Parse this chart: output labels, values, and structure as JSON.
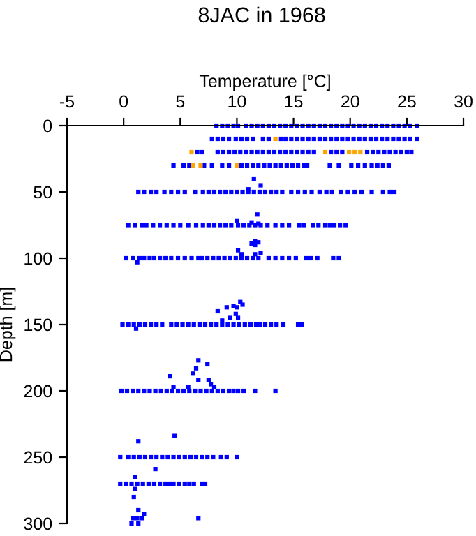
{
  "chart_data": {
    "type": "scatter",
    "title": "8JAC in 1968",
    "xlabel": "Temperature [°C]",
    "ylabel": "Depth [m]",
    "xlim": [
      -5,
      30
    ],
    "ylim": [
      300,
      0
    ],
    "xticks": [
      -5,
      0,
      5,
      10,
      15,
      20,
      25,
      30
    ],
    "yticks": [
      0,
      50,
      100,
      150,
      200,
      250,
      300
    ],
    "grid": false,
    "marker": "square",
    "series": [
      {
        "color": "#0000ff",
        "x": [
          8.2,
          8.7,
          9.2,
          9.7,
          10.1,
          10.8,
          11.3,
          11.8,
          12.3,
          12.8,
          13.3,
          13.8,
          14.3,
          14.8,
          15.3,
          15.8,
          16.3,
          16.8,
          17.3,
          17.8,
          18.3,
          18.8,
          19.3,
          19.8,
          20.3,
          20.8,
          21.3,
          21.8,
          22.3,
          22.8,
          23.3,
          23.8,
          24.3,
          24.8,
          25.3,
          25.9
        ],
        "values": [
          0,
          0,
          0,
          0,
          0,
          0,
          0,
          0,
          0,
          0,
          0,
          0,
          0,
          0,
          0,
          0,
          0,
          0,
          0,
          0,
          0,
          0,
          0,
          0,
          0,
          0,
          0,
          0,
          0,
          0,
          0,
          0,
          0,
          0,
          0,
          0
        ]
      },
      {
        "color": "#0000ff",
        "x": [
          7.8,
          8.3,
          8.8,
          9.3,
          9.9,
          10.4,
          10.9,
          11.4,
          12.3,
          12.8,
          13.9,
          14.3,
          14.8,
          15.3,
          15.8,
          16.3,
          16.8,
          17.3,
          17.8,
          18.3,
          18.8,
          19.3,
          19.8,
          20.3,
          20.8,
          21.3,
          21.8,
          22.3,
          22.8,
          23.3,
          23.8,
          24.3,
          24.8,
          25.3,
          25.9
        ],
        "values": [
          10,
          10,
          10,
          10,
          10,
          10,
          10,
          10,
          10,
          10,
          10,
          10,
          10,
          10,
          10,
          10,
          10,
          10,
          10,
          10,
          10,
          10,
          10,
          10,
          10,
          10,
          10,
          10,
          10,
          10,
          10,
          10,
          10,
          10,
          10
        ]
      },
      {
        "color": "#0000ff",
        "x": [
          6.5,
          6.9,
          8.3,
          8.8,
          9.3,
          9.8,
          10.3,
          10.8,
          11.3,
          11.8,
          12.3,
          12.8,
          13.3,
          13.8,
          14.3,
          14.8,
          15.3,
          15.8,
          16.3,
          16.8,
          18.3,
          18.8,
          19.3,
          21.5,
          22.0,
          22.5,
          23.0,
          23.5,
          24.0,
          24.5,
          25.0,
          25.4
        ],
        "values": [
          20,
          20,
          20,
          20,
          20,
          20,
          20,
          20,
          20,
          20,
          20,
          20,
          20,
          20,
          20,
          20,
          20,
          20,
          20,
          20,
          20,
          20,
          20,
          20,
          20,
          20,
          20,
          20,
          20,
          20,
          20,
          20
        ]
      },
      {
        "color": "#0000ff",
        "x": [
          4.4,
          5.3,
          5.8,
          7.1,
          7.8,
          8.7,
          9.3,
          10.4,
          10.9,
          11.4,
          11.9,
          12.4,
          12.9,
          13.4,
          13.9,
          14.4,
          14.9,
          15.4,
          15.9,
          16.2,
          18.2,
          19.0,
          20.1,
          20.7,
          21.3,
          21.9,
          22.4,
          22.9,
          23.4
        ],
        "values": [
          30,
          30,
          30,
          30,
          30,
          30,
          30,
          30,
          30,
          30,
          30,
          30,
          30,
          30,
          30,
          30,
          30,
          30,
          30,
          30,
          30,
          30,
          30,
          30,
          30,
          30,
          30,
          30,
          30
        ]
      },
      {
        "color": "#0000ff",
        "x": [
          1.3,
          1.8,
          2.4,
          2.9,
          3.6,
          4.2,
          4.8,
          5.4,
          6.3,
          7.0,
          7.5,
          8.0,
          8.5,
          9.0,
          9.5,
          10.0,
          10.5,
          11.0,
          11.5,
          12.0,
          12.5,
          13.0,
          13.5,
          14.0,
          14.8,
          15.4,
          16.0,
          16.6,
          17.3,
          17.9,
          18.4,
          19.2,
          19.8,
          20.4,
          21.0,
          21.9,
          22.9,
          23.5,
          23.9
        ],
        "values": [
          50,
          50,
          50,
          50,
          50,
          50,
          50,
          50,
          50,
          50,
          50,
          50,
          50,
          50,
          50,
          50,
          50,
          50,
          50,
          50,
          50,
          50,
          50,
          50,
          50,
          50,
          50,
          50,
          50,
          50,
          50,
          50,
          50,
          50,
          50,
          50,
          50,
          50,
          50
        ]
      },
      {
        "color": "#0000ff",
        "x": [
          0.4,
          1.0,
          1.6,
          2.0,
          2.6,
          3.2,
          3.8,
          4.4,
          5.0,
          5.7,
          6.4,
          7.0,
          7.5,
          8.0,
          8.5,
          9.0,
          9.5,
          10.1,
          10.6,
          11.1,
          11.6,
          12.1,
          12.7,
          13.4,
          14.0,
          14.6,
          15.5,
          15.9,
          16.7,
          17.2,
          17.8,
          18.2,
          18.6,
          19.1,
          19.6
        ],
        "values": [
          75,
          75,
          75,
          75,
          75,
          75,
          75,
          75,
          75,
          75,
          75,
          75,
          75,
          75,
          75,
          75,
          75,
          75,
          75,
          75,
          75,
          75,
          75,
          75,
          75,
          75,
          75,
          75,
          75,
          75,
          75,
          75,
          75,
          75,
          75
        ]
      },
      {
        "color": "#0000ff",
        "x": [
          0.2,
          0.8,
          1.4,
          1.8,
          2.3,
          2.7,
          3.2,
          3.7,
          4.2,
          4.8,
          5.4,
          6.0,
          6.6,
          6.9,
          7.4,
          7.9,
          8.4,
          8.9,
          9.4,
          9.9,
          10.4,
          10.9,
          11.4,
          11.9,
          12.8,
          13.4,
          14.0,
          14.6,
          15.2,
          16.1,
          16.5,
          17.1,
          18.5,
          19.0
        ],
        "values": [
          100,
          100,
          100,
          100,
          100,
          100,
          100,
          100,
          100,
          100,
          100,
          100,
          100,
          100,
          100,
          100,
          100,
          100,
          100,
          100,
          100,
          100,
          100,
          100,
          100,
          100,
          100,
          100,
          100,
          100,
          100,
          100,
          100,
          100
        ]
      },
      {
        "color": "#0000ff",
        "x": [
          -0.1,
          0.4,
          0.9,
          1.4,
          1.9,
          2.4,
          2.9,
          3.4,
          4.2,
          4.7,
          5.2,
          5.7,
          6.2,
          6.7,
          7.2,
          7.7,
          8.2,
          8.7,
          9.2,
          9.7,
          10.2,
          10.7,
          11.2,
          11.7,
          12.0,
          12.5,
          13.0,
          13.5,
          14.1,
          15.4,
          15.7
        ],
        "values": [
          150,
          150,
          150,
          150,
          150,
          150,
          150,
          150,
          150,
          150,
          150,
          150,
          150,
          150,
          150,
          150,
          150,
          150,
          150,
          150,
          150,
          150,
          150,
          150,
          150,
          150,
          150,
          150,
          150,
          150,
          150
        ]
      },
      {
        "color": "#0000ff",
        "x": [
          -0.2,
          0.3,
          0.8,
          1.3,
          1.8,
          2.3,
          2.8,
          3.3,
          3.8,
          4.3,
          4.8,
          5.3,
          5.8,
          6.3,
          6.8,
          7.3,
          7.8,
          8.3,
          8.8,
          9.3,
          9.7,
          10.1,
          10.6,
          11.6,
          13.4
        ],
        "values": [
          200,
          200,
          200,
          200,
          200,
          200,
          200,
          200,
          200,
          200,
          200,
          200,
          200,
          200,
          200,
          200,
          200,
          200,
          200,
          200,
          200,
          200,
          200,
          200,
          200
        ]
      },
      {
        "color": "#0000ff",
        "x": [
          -0.3,
          0.4,
          0.9,
          1.4,
          1.9,
          2.4,
          2.9,
          3.4,
          3.9,
          4.4,
          4.9,
          5.4,
          5.9,
          6.4,
          6.9,
          7.4,
          7.9,
          8.6,
          9.1,
          10.0
        ],
        "values": [
          250,
          250,
          250,
          250,
          250,
          250,
          250,
          250,
          250,
          250,
          250,
          250,
          250,
          250,
          250,
          250,
          250,
          250,
          250,
          250
        ]
      },
      {
        "color": "#0000ff",
        "x": [
          -0.3,
          0.2,
          0.7,
          1.2,
          1.7,
          2.2,
          2.7,
          3.2,
          3.7,
          4.1,
          4.4,
          4.9,
          5.4,
          5.8,
          6.2,
          6.9,
          7.2
        ],
        "values": [
          270,
          270,
          270,
          270,
          270,
          270,
          270,
          270,
          270,
          270,
          270,
          270,
          270,
          270,
          270,
          270,
          270
        ]
      },
      {
        "color": "#0000ff",
        "x": [
          11.5,
          12.1,
          11.0,
          11.8,
          10.0,
          11.3,
          11.9,
          11.6,
          11.9,
          11.3,
          11.6,
          10.1,
          10.4,
          12.1,
          11.6,
          1.2,
          10.3,
          10.5,
          9.7,
          10.0,
          9.1,
          8.3,
          9.9,
          9.4,
          10.1,
          8.7,
          1.1,
          6.6,
          7.4,
          6.4,
          4.1,
          6.1,
          6.6,
          7.5,
          7.7,
          8.0,
          4.4,
          5.7,
          1.3,
          4.5,
          2.8,
          1.0,
          1.0,
          0.9,
          1.3,
          1.8,
          0.8,
          1.2,
          1.6,
          0.7,
          1.3,
          6.6
        ],
        "values": [
          40,
          45,
          48,
          67,
          72,
          73,
          74,
          87,
          88,
          89,
          90,
          94,
          97,
          96,
          97,
          103,
          133,
          135,
          136,
          137,
          137,
          140,
          142,
          145,
          145,
          147,
          153,
          177,
          180,
          183,
          189,
          187,
          192,
          192,
          195,
          197,
          197,
          197,
          238,
          234,
          259,
          265,
          274,
          280,
          290,
          293,
          296,
          296,
          296,
          300,
          300,
          296
        ]
      },
      {
        "color": "#ffa500",
        "x": [
          6.0,
          17.8,
          19.9,
          20.4,
          20.9,
          13.4,
          6.1,
          6.8,
          10.0
        ],
        "values": [
          20,
          20,
          20,
          20,
          20,
          10,
          30,
          30,
          30
        ]
      }
    ]
  }
}
